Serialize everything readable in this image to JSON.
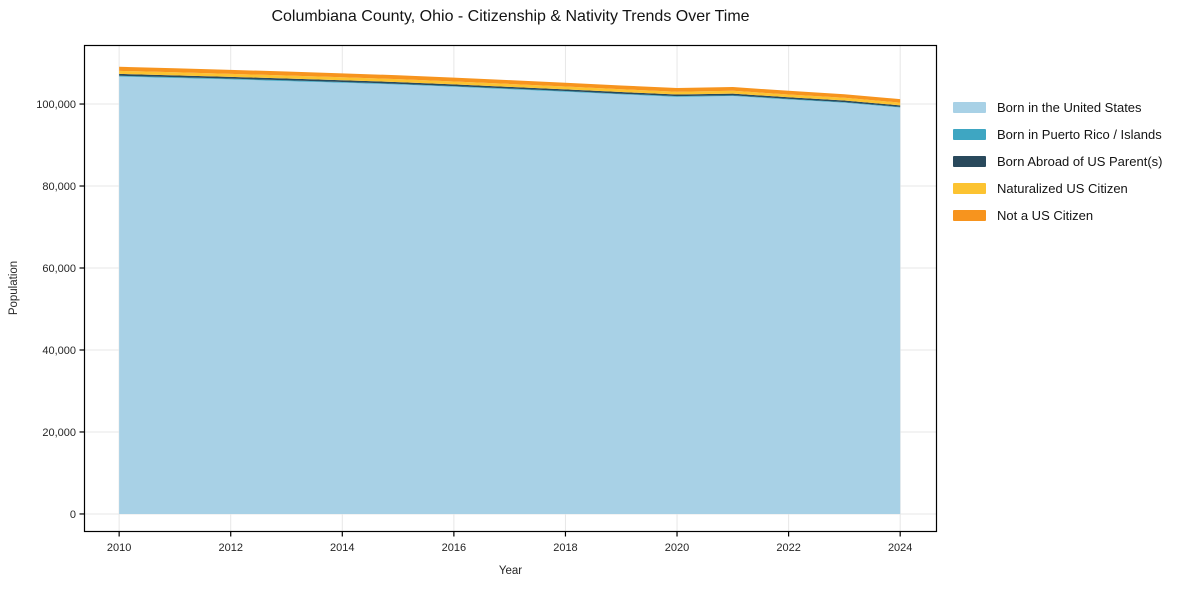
{
  "chart_data": {
    "type": "area",
    "stacked": true,
    "title": "Columbiana County, Ohio - Citizenship & Nativity Trends Over Time",
    "xlabel": "Year",
    "ylabel": "Population",
    "x": [
      2010,
      2011,
      2012,
      2013,
      2014,
      2015,
      2016,
      2017,
      2018,
      2019,
      2020,
      2021,
      2022,
      2023,
      2024
    ],
    "series": [
      {
        "name": "Born in the United States",
        "color": "#a8d1e6",
        "values": [
          106700,
          106350,
          106000,
          105600,
          105200,
          104750,
          104200,
          103600,
          103000,
          102350,
          101750,
          101950,
          101100,
          100300,
          99150
        ]
      },
      {
        "name": "Born in Puerto Rico / Islands",
        "color": "#3ea6c2",
        "values": [
          200,
          200,
          190,
          190,
          185,
          180,
          180,
          175,
          170,
          170,
          165,
          170,
          160,
          160,
          150
        ]
      },
      {
        "name": "Born Abroad of US Parent(s)",
        "color": "#29495c",
        "values": [
          450,
          445,
          440,
          435,
          430,
          425,
          420,
          415,
          410,
          405,
          400,
          410,
          400,
          390,
          380
        ]
      },
      {
        "name": "Naturalized US Citizen",
        "color": "#fcc331",
        "values": [
          750,
          745,
          735,
          730,
          720,
          715,
          710,
          705,
          700,
          690,
          685,
          700,
          680,
          670,
          655
        ]
      },
      {
        "name": "Not a US Citizen",
        "color": "#f7941e",
        "values": [
          1000,
          990,
          980,
          965,
          955,
          945,
          935,
          925,
          915,
          905,
          895,
          915,
          885,
          875,
          855
        ]
      }
    ],
    "xticks": [
      2010,
      2012,
      2014,
      2016,
      2018,
      2020,
      2022,
      2024
    ],
    "yticks": [
      0,
      20000,
      40000,
      60000,
      80000,
      100000
    ],
    "xlim": [
      2009.37,
      2024.66
    ],
    "ylim": [
      -4400,
      114400
    ],
    "grid": true,
    "legend_position": "right-outside",
    "colors": {
      "background": "#ffffff",
      "grid": "#e7e7e7",
      "spine": "#000000",
      "tick_label": "#262626"
    }
  }
}
